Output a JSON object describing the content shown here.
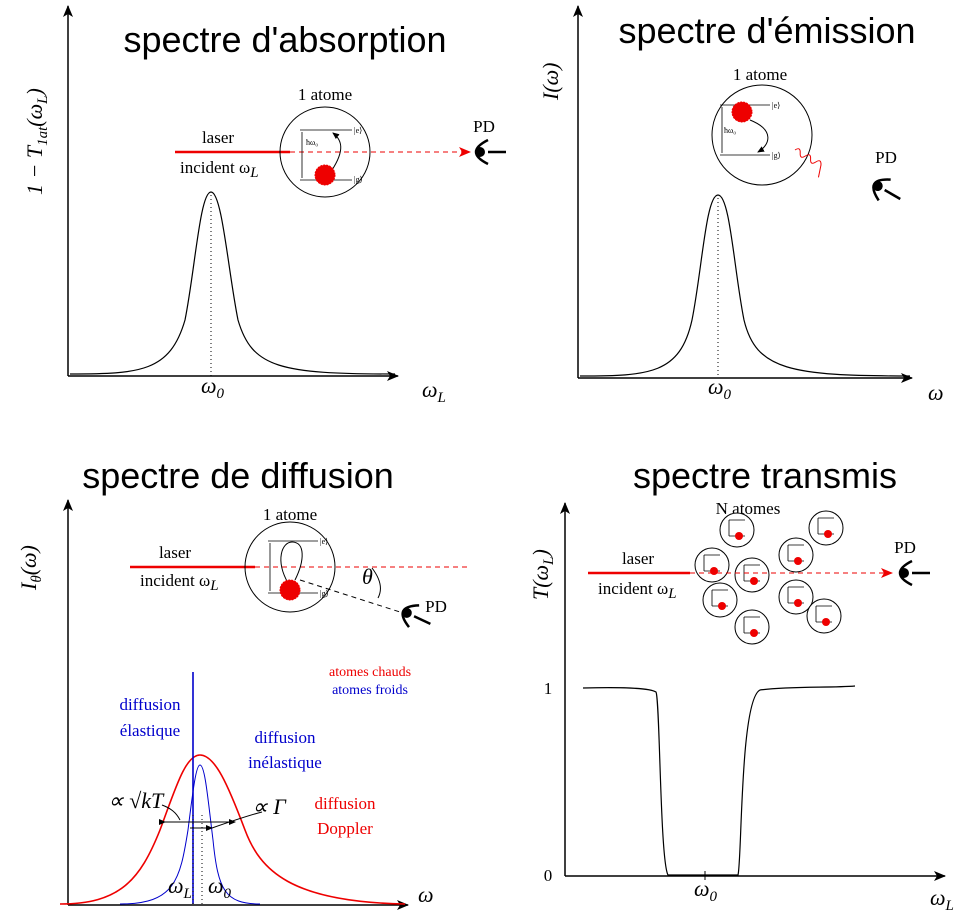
{
  "absorption": {
    "title": "spectre d'absorption",
    "y_label": {
      "a": "1 − T",
      "b": "1at",
      "c": "(ω",
      "d": "L",
      "e": ")"
    },
    "x_tick": {
      "base": "ω",
      "sub": "0"
    },
    "x_label": {
      "base": "ω",
      "sub": "L"
    },
    "atom": "1 atome",
    "laser": "laser",
    "incident": {
      "base": "incident ω",
      "sub": "L"
    },
    "pd": "PD",
    "hw0": "ħω₀",
    "e": "|e⟩",
    "g": "|g⟩"
  },
  "emission": {
    "title": "spectre d'émission",
    "y_label": "I(ω)",
    "x_tick": {
      "base": "ω",
      "sub": "0"
    },
    "x_label": "ω",
    "atom": "1 atome",
    "pd": "PD",
    "hw0": "ħω₀",
    "e": "|e⟩",
    "g": "|g⟩"
  },
  "diffusion": {
    "title": "spectre de diffusion",
    "y_label": {
      "base": "I",
      "sub": "θ",
      "tail": "(ω)"
    },
    "atom": "1 atome",
    "laser": "laser",
    "incident": {
      "base": "incident ω",
      "sub": "L"
    },
    "pd": "PD",
    "theta": "θ",
    "e": "|e⟩",
    "g": "|g⟩",
    "hot": "atomes chauds",
    "cold": "atomes froids",
    "elastic": [
      "diffusion",
      "élastique"
    ],
    "inelastic": [
      "diffusion",
      "inélastique"
    ],
    "doppler": [
      "diffusion",
      "Doppler"
    ],
    "kT": "∝ √kT",
    "gamma": "∝ Γ",
    "wL": {
      "base": "ω",
      "sub": "L"
    },
    "w0": {
      "base": "ω",
      "sub": "0"
    },
    "x_label": "ω"
  },
  "transmis": {
    "title": "spectre transmis",
    "y_label": {
      "a": "T(ω",
      "b": "L",
      "c": ")"
    },
    "atoms": "N atomes",
    "laser": "laser",
    "incident": {
      "base": "incident ω",
      "sub": "L"
    },
    "pd": "PD",
    "tick_1": "1",
    "tick_0": "0",
    "x_tick": {
      "base": "ω",
      "sub": "0"
    },
    "x_label": {
      "base": "ω",
      "sub": "L"
    }
  }
}
